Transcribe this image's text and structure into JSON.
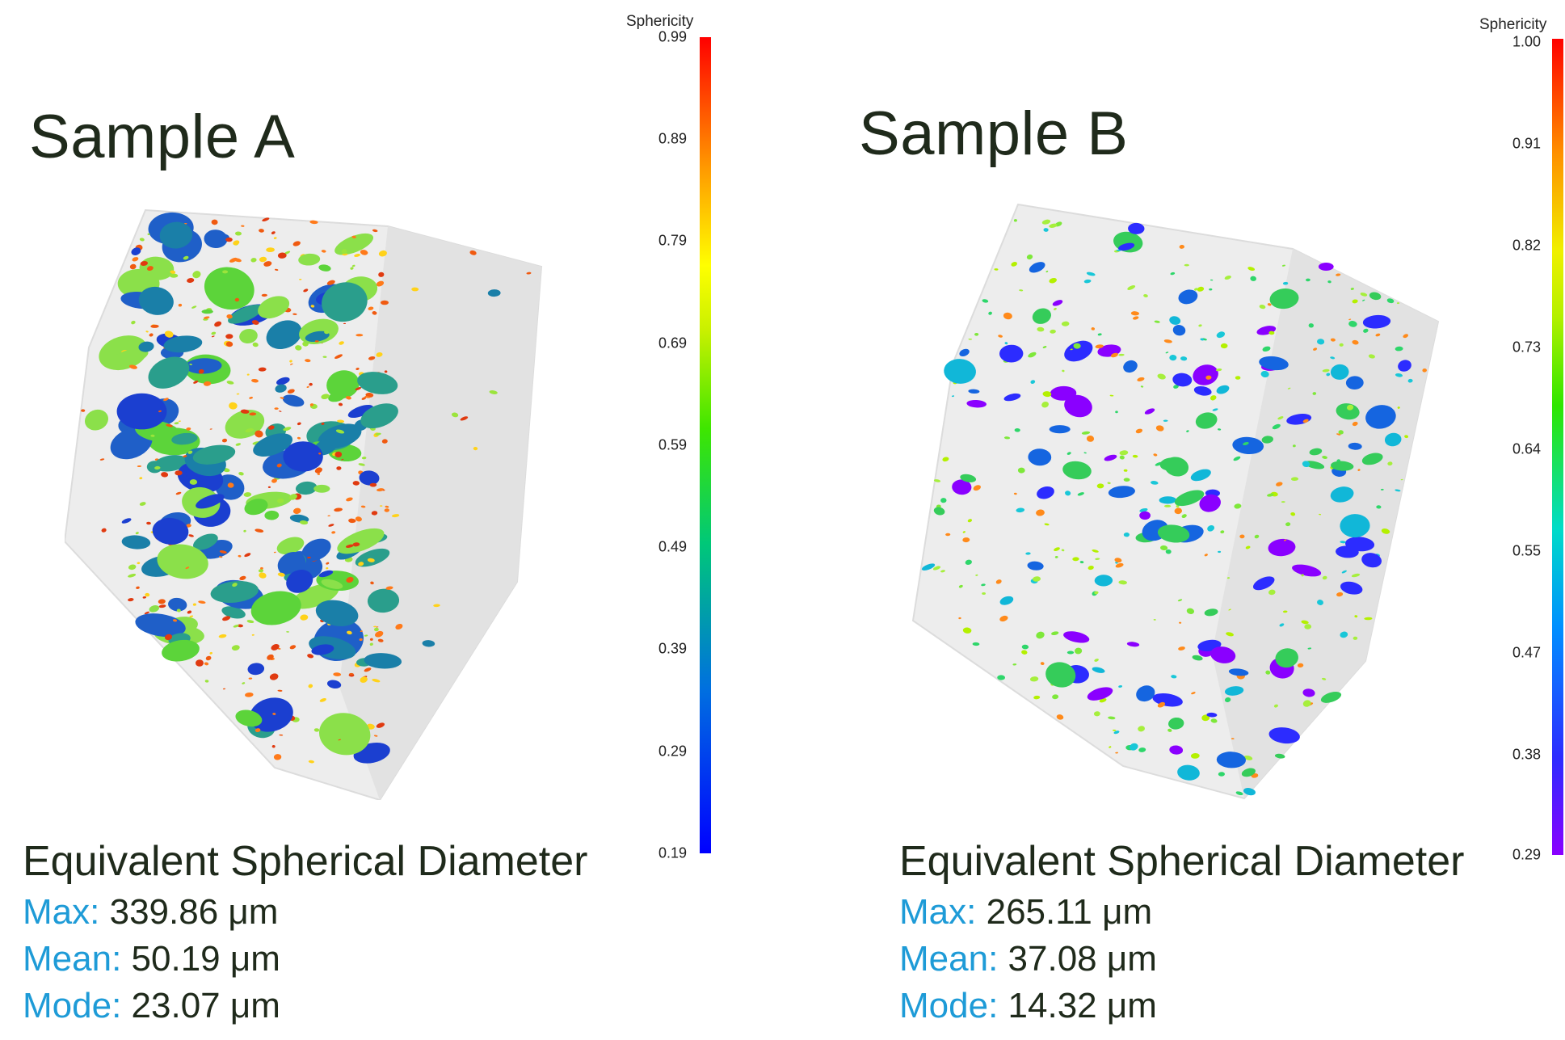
{
  "panels": [
    {
      "title": "Sample A",
      "colorbar": {
        "label": "Sphericity",
        "ticks": [
          "0.99",
          "0.89",
          "0.79",
          "0.69",
          "0.59",
          "0.49",
          "0.39",
          "0.29",
          "0.19"
        ]
      },
      "stats": {
        "heading": "Equivalent Spherical Diameter",
        "max_label": "Max:",
        "max_value": "339.86 μm",
        "mean_label": "Mean:",
        "mean_value": "50.19 μm",
        "mode_label": "Mode:",
        "mode_value": "23.07 μm"
      }
    },
    {
      "title": "Sample B",
      "colorbar": {
        "label": "Sphericity",
        "ticks": [
          "1.00",
          "0.91",
          "0.82",
          "0.73",
          "0.64",
          "0.55",
          "0.47",
          "0.38",
          "0.29"
        ]
      },
      "stats": {
        "heading": "Equivalent Spherical Diameter",
        "max_label": "Max:",
        "max_value": "265.11 μm",
        "mean_label": "Mean:",
        "mean_value": "37.08 μm",
        "mode_label": "Mode:",
        "mode_value": "14.32 μm"
      }
    }
  ],
  "colors": {
    "stat_key": "#1e9bd7",
    "text": "#1f2a1b"
  }
}
